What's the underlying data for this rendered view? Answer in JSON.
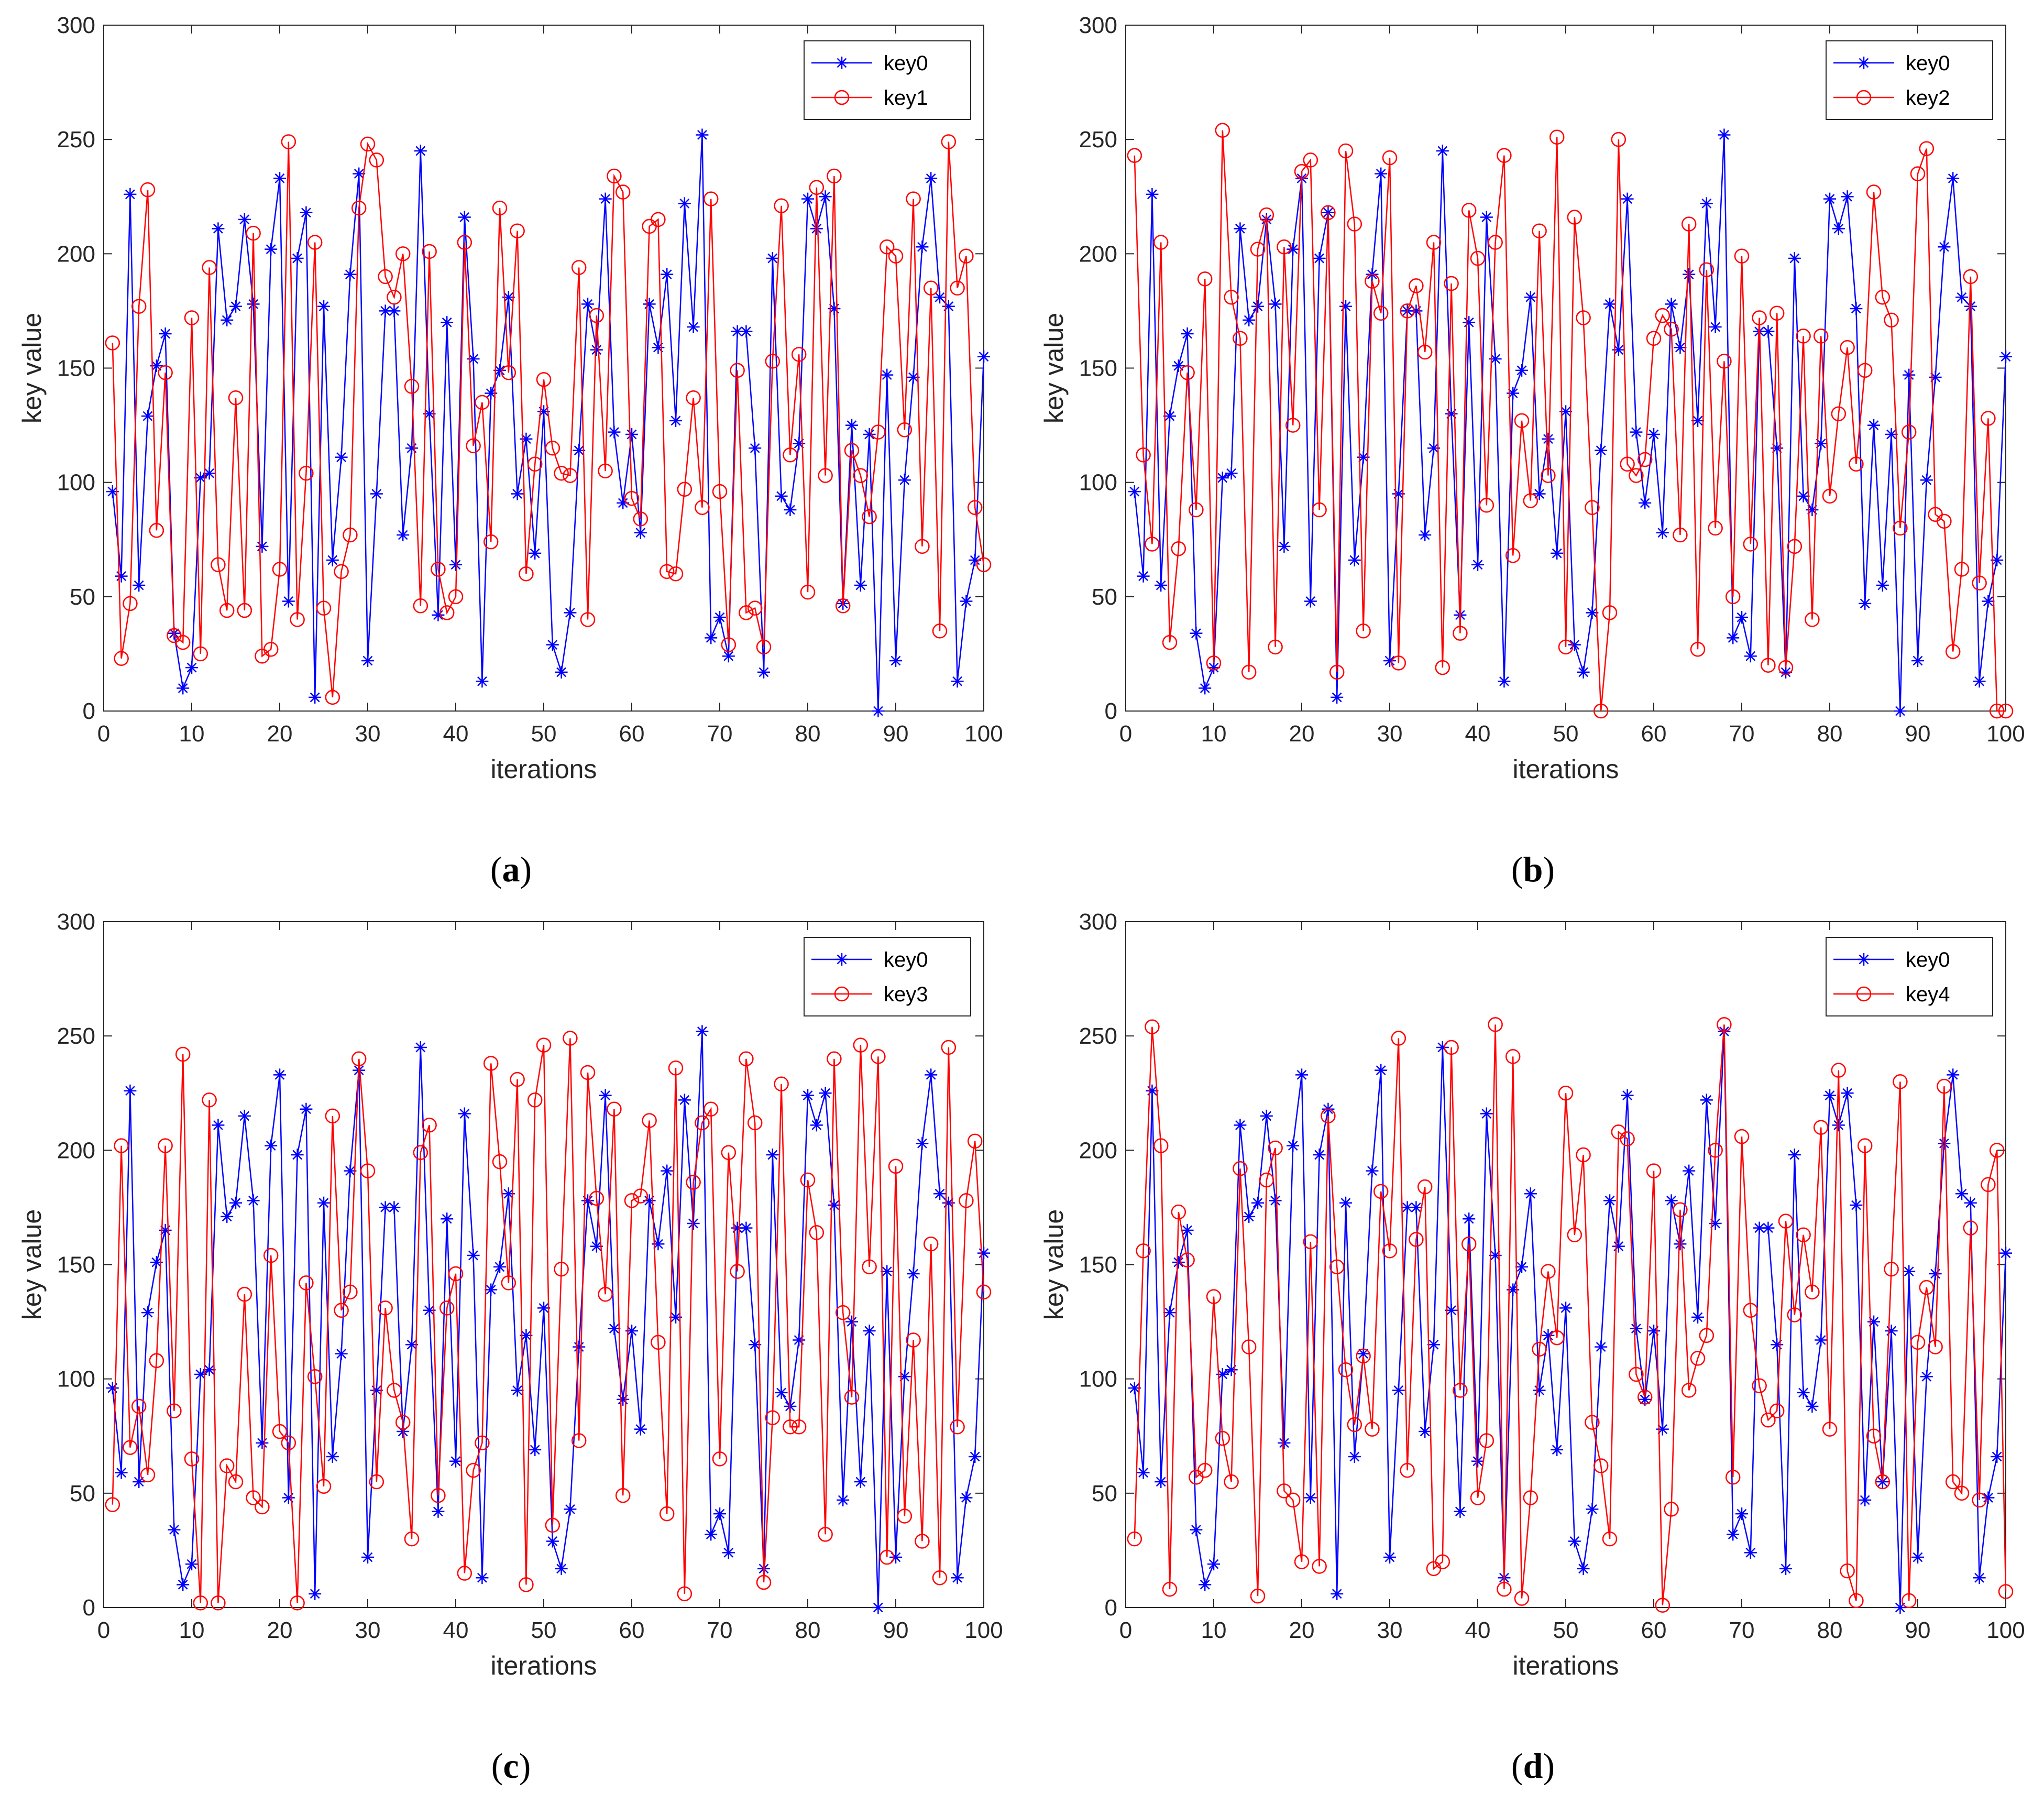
{
  "figure": {
    "panels": [
      {
        "caption_label": "a",
        "caption_open": "(",
        "caption_close": ")"
      },
      {
        "caption_label": "b",
        "caption_open": "(",
        "caption_close": ")"
      },
      {
        "caption_label": "c",
        "caption_open": "(",
        "caption_close": ")"
      },
      {
        "caption_label": "d",
        "caption_open": "(",
        "caption_close": ")"
      }
    ]
  },
  "colors": {
    "key0": "#0000FF",
    "other": "#FF0000"
  },
  "chart_data": [
    {
      "type": "line",
      "title": "",
      "xlabel": "iterations",
      "ylabel": "key value",
      "xlim": [
        0,
        100
      ],
      "ylim": [
        0,
        300
      ],
      "xticks": [
        0,
        10,
        20,
        30,
        40,
        50,
        60,
        70,
        80,
        90,
        100
      ],
      "yticks": [
        0,
        50,
        100,
        150,
        200,
        250,
        300
      ],
      "legend_position": "top-right",
      "series": [
        {
          "name": "key0",
          "marker": "star",
          "color": "#0000FF",
          "values": [
            96,
            59,
            226,
            55,
            129,
            151,
            165,
            34,
            10,
            19,
            102,
            104,
            211,
            171,
            177,
            215,
            178,
            72,
            202,
            233,
            48,
            198,
            218,
            6,
            177,
            66,
            111,
            191,
            235,
            22,
            95,
            175,
            175,
            77,
            115,
            245,
            130,
            42,
            170,
            64,
            216,
            154,
            13,
            139,
            149,
            181,
            95,
            119,
            69,
            131,
            29,
            17,
            43,
            114,
            178,
            158,
            224,
            122,
            91,
            121,
            78,
            178,
            159,
            191,
            127,
            222,
            168,
            252,
            32,
            41,
            24,
            166,
            166,
            115,
            17,
            198,
            94,
            88,
            117,
            224,
            211,
            225,
            176,
            47,
            125,
            55,
            121,
            0,
            147,
            22,
            101,
            146,
            203,
            233,
            181,
            177,
            13,
            48,
            66,
            155
          ]
        },
        {
          "name": "key1",
          "marker": "circle",
          "color": "#FF0000",
          "values": [
            161,
            23,
            47,
            177,
            228,
            79,
            148,
            33,
            30,
            172,
            25,
            194,
            64,
            44,
            137,
            44,
            209,
            24,
            27,
            62,
            249,
            40,
            104,
            205,
            45,
            6,
            61,
            77,
            220,
            248,
            241,
            190,
            181,
            200,
            142,
            46,
            201,
            62,
            43,
            50,
            205,
            116,
            135,
            74,
            220,
            148,
            210,
            60,
            108,
            145,
            115,
            104,
            103,
            194,
            40,
            173,
            105,
            234,
            227,
            93,
            84,
            212,
            215,
            61,
            60,
            97,
            137,
            89,
            224,
            96,
            29,
            149,
            43,
            45,
            28,
            153,
            221,
            112,
            156,
            52,
            229,
            103,
            234,
            46,
            114,
            103,
            85,
            122,
            203,
            199,
            123,
            224,
            72,
            185,
            35,
            249,
            185,
            199,
            89,
            64
          ]
        }
      ]
    },
    {
      "type": "line",
      "title": "",
      "xlabel": "iterations",
      "ylabel": "key value",
      "xlim": [
        0,
        100
      ],
      "ylim": [
        0,
        300
      ],
      "xticks": [
        0,
        10,
        20,
        30,
        40,
        50,
        60,
        70,
        80,
        90,
        100
      ],
      "yticks": [
        0,
        50,
        100,
        150,
        200,
        250,
        300
      ],
      "legend_position": "top-right",
      "series": [
        {
          "name": "key0",
          "marker": "star",
          "color": "#0000FF",
          "values": [
            96,
            59,
            226,
            55,
            129,
            151,
            165,
            34,
            10,
            19,
            102,
            104,
            211,
            171,
            177,
            215,
            178,
            72,
            202,
            233,
            48,
            198,
            218,
            6,
            177,
            66,
            111,
            191,
            235,
            22,
            95,
            175,
            175,
            77,
            115,
            245,
            130,
            42,
            170,
            64,
            216,
            154,
            13,
            139,
            149,
            181,
            95,
            119,
            69,
            131,
            29,
            17,
            43,
            114,
            178,
            158,
            224,
            122,
            91,
            121,
            78,
            178,
            159,
            191,
            127,
            222,
            168,
            252,
            32,
            41,
            24,
            166,
            166,
            115,
            17,
            198,
            94,
            88,
            117,
            224,
            211,
            225,
            176,
            47,
            125,
            55,
            121,
            0,
            147,
            22,
            101,
            146,
            203,
            233,
            181,
            177,
            13,
            48,
            66,
            155
          ]
        },
        {
          "name": "key2",
          "marker": "circle",
          "color": "#FF0000",
          "values": [
            243,
            112,
            73,
            205,
            30,
            71,
            148,
            88,
            189,
            21,
            254,
            181,
            163,
            17,
            202,
            217,
            28,
            203,
            125,
            236,
            241,
            88,
            218,
            17,
            245,
            213,
            35,
            188,
            174,
            242,
            21,
            175,
            186,
            157,
            205,
            19,
            187,
            34,
            219,
            198,
            90,
            205,
            243,
            68,
            127,
            92,
            210,
            103,
            251,
            28,
            216,
            172,
            89,
            0,
            43,
            250,
            108,
            103,
            110,
            163,
            173,
            167,
            77,
            213,
            27,
            193,
            80,
            153,
            50,
            199,
            73,
            172,
            20,
            174,
            19,
            72,
            164,
            40,
            164,
            94,
            130,
            159,
            108,
            149,
            227,
            181,
            171,
            80,
            122,
            235,
            246,
            86,
            83,
            26,
            62,
            190,
            56,
            128,
            0,
            0
          ]
        }
      ]
    },
    {
      "type": "line",
      "title": "",
      "xlabel": "iterations",
      "ylabel": "key value",
      "xlim": [
        0,
        100
      ],
      "ylim": [
        0,
        300
      ],
      "xticks": [
        0,
        10,
        20,
        30,
        40,
        50,
        60,
        70,
        80,
        90,
        100
      ],
      "yticks": [
        0,
        50,
        100,
        150,
        200,
        250,
        300
      ],
      "legend_position": "top-right",
      "series": [
        {
          "name": "key0",
          "marker": "star",
          "color": "#0000FF",
          "values": [
            96,
            59,
            226,
            55,
            129,
            151,
            165,
            34,
            10,
            19,
            102,
            104,
            211,
            171,
            177,
            215,
            178,
            72,
            202,
            233,
            48,
            198,
            218,
            6,
            177,
            66,
            111,
            191,
            235,
            22,
            95,
            175,
            175,
            77,
            115,
            245,
            130,
            42,
            170,
            64,
            216,
            154,
            13,
            139,
            149,
            181,
            95,
            119,
            69,
            131,
            29,
            17,
            43,
            114,
            178,
            158,
            224,
            122,
            91,
            121,
            78,
            178,
            159,
            191,
            127,
            222,
            168,
            252,
            32,
            41,
            24,
            166,
            166,
            115,
            17,
            198,
            94,
            88,
            117,
            224,
            211,
            225,
            176,
            47,
            125,
            55,
            121,
            0,
            147,
            22,
            101,
            146,
            203,
            233,
            181,
            177,
            13,
            48,
            66,
            155
          ]
        },
        {
          "name": "key3",
          "marker": "circle",
          "color": "#FF0000",
          "values": [
            45,
            202,
            70,
            88,
            58,
            108,
            202,
            86,
            242,
            65,
            2,
            222,
            2,
            62,
            55,
            137,
            48,
            44,
            154,
            77,
            72,
            2,
            142,
            101,
            53,
            215,
            130,
            138,
            240,
            191,
            55,
            131,
            95,
            81,
            30,
            199,
            211,
            49,
            131,
            146,
            15,
            60,
            72,
            238,
            195,
            142,
            231,
            10,
            222,
            246,
            36,
            148,
            249,
            73,
            234,
            179,
            137,
            218,
            49,
            178,
            180,
            213,
            116,
            41,
            236,
            6,
            186,
            212,
            218,
            65,
            199,
            147,
            240,
            212,
            11,
            83,
            229,
            79,
            79,
            187,
            164,
            32,
            240,
            129,
            92,
            246,
            149,
            241,
            22,
            193,
            40,
            117,
            29,
            159,
            13,
            245,
            79,
            178,
            204,
            138
          ]
        }
      ]
    },
    {
      "type": "line",
      "title": "",
      "xlabel": "iterations",
      "ylabel": "key value",
      "xlim": [
        0,
        100
      ],
      "ylim": [
        0,
        300
      ],
      "xticks": [
        0,
        10,
        20,
        30,
        40,
        50,
        60,
        70,
        80,
        90,
        100
      ],
      "yticks": [
        0,
        50,
        100,
        150,
        200,
        250,
        300
      ],
      "legend_position": "top-right",
      "series": [
        {
          "name": "key0",
          "marker": "star",
          "color": "#0000FF",
          "values": [
            96,
            59,
            226,
            55,
            129,
            151,
            165,
            34,
            10,
            19,
            102,
            104,
            211,
            171,
            177,
            215,
            178,
            72,
            202,
            233,
            48,
            198,
            218,
            6,
            177,
            66,
            111,
            191,
            235,
            22,
            95,
            175,
            175,
            77,
            115,
            245,
            130,
            42,
            170,
            64,
            216,
            154,
            13,
            139,
            149,
            181,
            95,
            119,
            69,
            131,
            29,
            17,
            43,
            114,
            178,
            158,
            224,
            122,
            91,
            121,
            78,
            178,
            159,
            191,
            127,
            222,
            168,
            252,
            32,
            41,
            24,
            166,
            166,
            115,
            17,
            198,
            94,
            88,
            117,
            224,
            211,
            225,
            176,
            47,
            125,
            55,
            121,
            0,
            147,
            22,
            101,
            146,
            203,
            233,
            181,
            177,
            13,
            48,
            66,
            155
          ]
        },
        {
          "name": "key4",
          "marker": "circle",
          "color": "#FF0000",
          "values": [
            30,
            156,
            254,
            202,
            8,
            173,
            152,
            57,
            60,
            136,
            74,
            55,
            192,
            114,
            5,
            187,
            201,
            51,
            47,
            20,
            160,
            18,
            215,
            149,
            104,
            80,
            110,
            78,
            182,
            156,
            249,
            60,
            161,
            184,
            17,
            20,
            245,
            95,
            159,
            48,
            73,
            255,
            8,
            241,
            4,
            48,
            113,
            147,
            118,
            225,
            163,
            198,
            81,
            62,
            30,
            208,
            205,
            102,
            92,
            191,
            1,
            43,
            174,
            95,
            109,
            119,
            200,
            255,
            57,
            206,
            130,
            97,
            82,
            86,
            169,
            128,
            163,
            138,
            210,
            78,
            235,
            16,
            3,
            202,
            75,
            55,
            148,
            230,
            3,
            116,
            140,
            114,
            228,
            55,
            50,
            166,
            47,
            185,
            200,
            7
          ]
        }
      ]
    }
  ]
}
